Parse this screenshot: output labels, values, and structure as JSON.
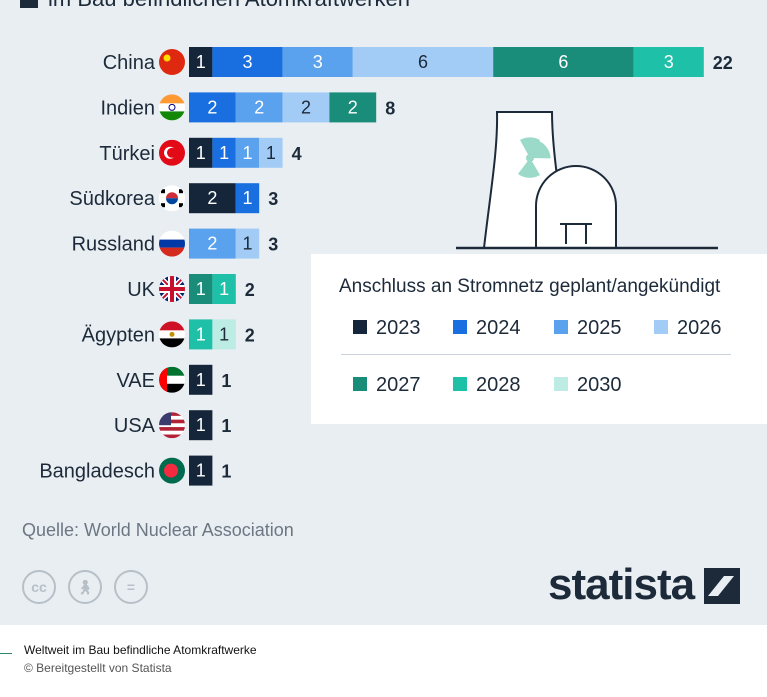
{
  "header": {
    "title": "im Bau befindlichen Atomkraftwerken"
  },
  "chart_data": {
    "type": "bar",
    "orientation": "horizontal",
    "stacked": true,
    "categories": [
      "China",
      "Indien",
      "Türkei",
      "Südkorea",
      "Russland",
      "UK",
      "Ägypten",
      "VAE",
      "USA",
      "Bangladesch"
    ],
    "series": [
      {
        "name": "2023",
        "color": "#16263a",
        "values": [
          1,
          0,
          1,
          2,
          0,
          0,
          0,
          1,
          1,
          1
        ]
      },
      {
        "name": "2024",
        "color": "#1a6fe0",
        "values": [
          3,
          2,
          1,
          1,
          0,
          0,
          0,
          0,
          0,
          0
        ]
      },
      {
        "name": "2025",
        "color": "#5aa2ee",
        "values": [
          3,
          2,
          1,
          0,
          2,
          0,
          0,
          0,
          0,
          0
        ]
      },
      {
        "name": "2026",
        "color": "#a2ccf6",
        "values": [
          6,
          2,
          1,
          0,
          1,
          0,
          0,
          0,
          0,
          0
        ]
      },
      {
        "name": "2027",
        "color": "#1a8c7a",
        "values": [
          6,
          2,
          0,
          0,
          0,
          1,
          0,
          0,
          0,
          0
        ]
      },
      {
        "name": "2028",
        "color": "#1fc0a8",
        "values": [
          3,
          0,
          0,
          0,
          0,
          1,
          1,
          0,
          0,
          0
        ]
      },
      {
        "name": "2030",
        "color": "#bcece4",
        "values": [
          0,
          0,
          0,
          0,
          0,
          0,
          1,
          0,
          0,
          0
        ]
      }
    ],
    "totals": [
      22,
      8,
      4,
      3,
      3,
      2,
      2,
      1,
      1,
      1
    ],
    "legend_title": "Anschluss an Stromnetz geplant/angekündigt",
    "legend_position": "right",
    "grid": false,
    "xlabel": "",
    "ylabel": ""
  },
  "source": "Quelle: World Nuclear Association",
  "brand": {
    "name": "statista"
  },
  "footer": {
    "title": "Weltweit im Bau befindliche Atomkraftwerke",
    "credit": "© Bereitgestellt von Statista"
  },
  "icons": {
    "flags": [
      "china-flag-icon",
      "india-flag-icon",
      "turkey-flag-icon",
      "south-korea-flag-icon",
      "russia-flag-icon",
      "uk-flag-icon",
      "egypt-flag-icon",
      "uae-flag-icon",
      "usa-flag-icon",
      "bangladesh-flag-icon"
    ],
    "illustration": "nuclear-plant-icon",
    "license": [
      "cc-icon",
      "attribution-icon",
      "no-derivatives-icon"
    ]
  }
}
